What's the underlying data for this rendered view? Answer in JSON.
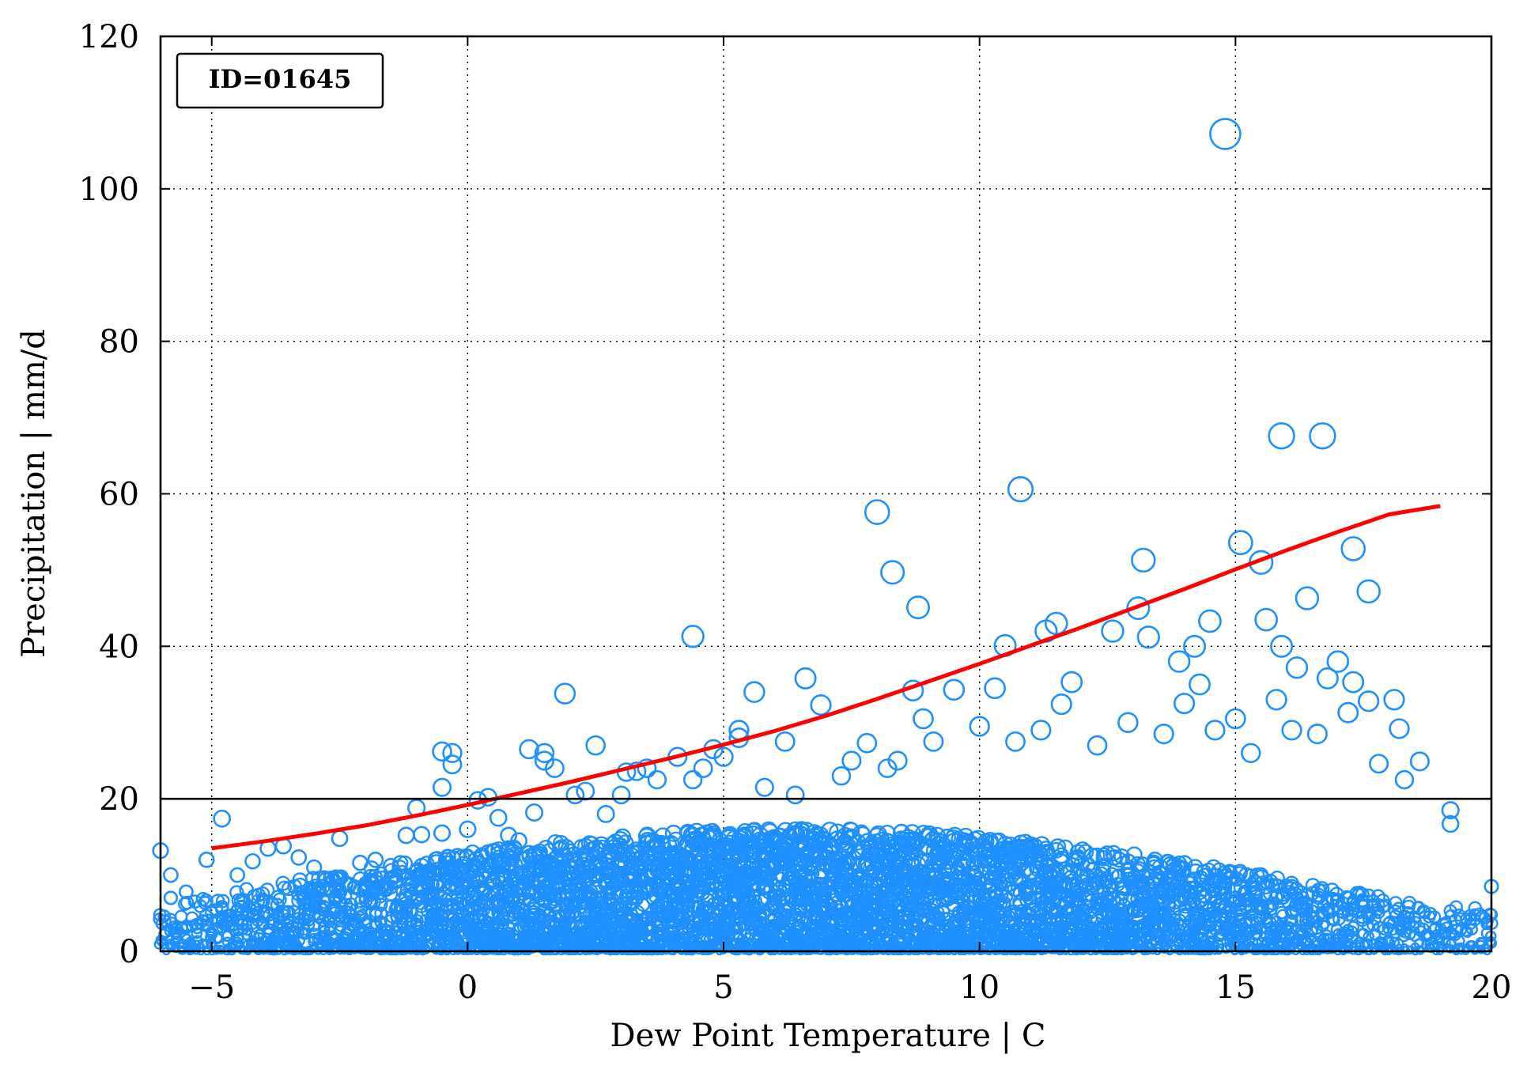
{
  "chart_data": {
    "type": "scatter",
    "title": "",
    "xlabel": "Dew Point Temperature | C",
    "ylabel": "Precipitation | mm/d",
    "xlim": [
      -6,
      20
    ],
    "ylim": [
      0,
      120
    ],
    "x_ticks": [
      -5,
      0,
      5,
      10,
      15,
      20
    ],
    "x_tick_labels": [
      "−5",
      "0",
      "5",
      "10",
      "15",
      "20"
    ],
    "y_ticks": [
      0,
      20,
      40,
      60,
      80,
      100,
      120
    ],
    "y_tick_labels": [
      "0",
      "20",
      "40",
      "60",
      "80",
      "100",
      "120"
    ],
    "grid": true,
    "annotation": "ID=01645",
    "reference_line_y": 20,
    "colors": {
      "points": "#1e90ff",
      "fit_line": "#ff0000",
      "reference_line": "#000000"
    },
    "series": [
      {
        "type": "scatter",
        "points": [
          [
            -6.0,
            13.2
          ],
          [
            -5.8,
            10.0
          ],
          [
            -5.8,
            7.0
          ],
          [
            -5.5,
            7.8
          ],
          [
            -5.1,
            12.0
          ],
          [
            -4.8,
            17.4
          ],
          [
            -4.5,
            10.0
          ],
          [
            -4.2,
            11.8
          ],
          [
            -3.9,
            13.5
          ],
          [
            -3.6,
            13.8
          ],
          [
            -3.3,
            12.3
          ],
          [
            -3.0,
            11.0
          ],
          [
            -2.5,
            14.8
          ],
          [
            -2.1,
            11.6
          ],
          [
            -1.8,
            12.0
          ],
          [
            -1.5,
            11.2
          ],
          [
            -1.2,
            15.2
          ],
          [
            -1.0,
            18.8
          ],
          [
            -0.9,
            15.3
          ],
          [
            -0.5,
            21.5
          ],
          [
            -0.5,
            26.2
          ],
          [
            -0.5,
            15.5
          ],
          [
            -0.3,
            26.0
          ],
          [
            -0.3,
            24.5
          ],
          [
            0.0,
            16.0
          ],
          [
            0.2,
            19.8
          ],
          [
            0.4,
            20.2
          ],
          [
            0.6,
            17.5
          ],
          [
            0.8,
            15.2
          ],
          [
            1.0,
            14.5
          ],
          [
            1.2,
            26.5
          ],
          [
            1.3,
            18.2
          ],
          [
            1.5,
            25.0
          ],
          [
            1.5,
            26.0
          ],
          [
            1.7,
            24.0
          ],
          [
            1.9,
            33.8
          ],
          [
            2.1,
            20.5
          ],
          [
            2.3,
            21.0
          ],
          [
            2.5,
            27.0
          ],
          [
            2.7,
            18.0
          ],
          [
            3.0,
            20.5
          ],
          [
            3.1,
            23.5
          ],
          [
            3.3,
            23.6
          ],
          [
            3.5,
            24.0
          ],
          [
            3.7,
            22.5
          ],
          [
            4.1,
            25.5
          ],
          [
            4.4,
            41.3
          ],
          [
            4.4,
            22.5
          ],
          [
            4.6,
            24.0
          ],
          [
            4.8,
            26.5
          ],
          [
            5.0,
            25.5
          ],
          [
            5.3,
            29.0
          ],
          [
            5.3,
            28.0
          ],
          [
            5.6,
            34.0
          ],
          [
            5.8,
            21.5
          ],
          [
            6.2,
            27.5
          ],
          [
            6.4,
            20.5
          ],
          [
            6.6,
            35.8
          ],
          [
            6.9,
            32.3
          ],
          [
            7.3,
            23.0
          ],
          [
            7.5,
            25.0
          ],
          [
            7.8,
            27.3
          ],
          [
            8.0,
            57.6
          ],
          [
            8.2,
            24.0
          ],
          [
            8.3,
            49.7
          ],
          [
            8.4,
            25.0
          ],
          [
            8.7,
            34.2
          ],
          [
            8.8,
            45.1
          ],
          [
            8.9,
            30.5
          ],
          [
            9.1,
            27.5
          ],
          [
            9.5,
            34.3
          ],
          [
            10.0,
            29.5
          ],
          [
            10.3,
            34.5
          ],
          [
            10.5,
            40.1
          ],
          [
            10.7,
            27.5
          ],
          [
            10.8,
            60.6
          ],
          [
            11.2,
            29.0
          ],
          [
            11.3,
            42.0
          ],
          [
            11.5,
            43.0
          ],
          [
            11.6,
            32.4
          ],
          [
            11.8,
            35.3
          ],
          [
            12.3,
            27.0
          ],
          [
            12.6,
            42.0
          ],
          [
            12.9,
            30.0
          ],
          [
            13.1,
            45.0
          ],
          [
            13.2,
            51.3
          ],
          [
            13.3,
            41.2
          ],
          [
            13.6,
            28.5
          ],
          [
            13.9,
            38.0
          ],
          [
            14.0,
            32.5
          ],
          [
            14.2,
            40.0
          ],
          [
            14.3,
            35.0
          ],
          [
            14.5,
            43.3
          ],
          [
            14.6,
            29.0
          ],
          [
            14.8,
            107.2
          ],
          [
            15.0,
            30.5
          ],
          [
            15.1,
            53.6
          ],
          [
            15.3,
            26.0
          ],
          [
            15.5,
            51.0
          ],
          [
            15.6,
            43.5
          ],
          [
            15.8,
            33.0
          ],
          [
            15.9,
            67.6
          ],
          [
            15.9,
            40.0
          ],
          [
            16.1,
            29.0
          ],
          [
            16.2,
            37.2
          ],
          [
            16.4,
            46.3
          ],
          [
            16.6,
            28.5
          ],
          [
            16.7,
            67.6
          ],
          [
            16.8,
            35.8
          ],
          [
            17.0,
            38.0
          ],
          [
            17.2,
            31.3
          ],
          [
            17.3,
            52.8
          ],
          [
            17.3,
            35.3
          ],
          [
            17.6,
            32.8
          ],
          [
            17.6,
            47.2
          ],
          [
            17.8,
            24.6
          ],
          [
            18.1,
            33.0
          ],
          [
            18.2,
            29.2
          ],
          [
            18.3,
            22.5
          ],
          [
            18.6,
            24.9
          ],
          [
            19.2,
            18.5
          ],
          [
            19.2,
            16.7
          ],
          [
            20.0,
            8.5
          ]
        ]
      },
      {
        "type": "line",
        "x": [
          -5,
          -4,
          -3,
          -2,
          -1,
          0,
          1,
          2,
          3,
          4,
          5,
          6,
          7,
          8,
          9,
          10,
          11,
          12,
          13,
          14,
          15,
          16,
          17,
          18,
          19
        ],
        "y": [
          13.5,
          14.4,
          15.4,
          16.5,
          17.8,
          19.2,
          20.7,
          22.2,
          23.8,
          25.4,
          27.1,
          28.9,
          30.9,
          33.1,
          35.4,
          37.7,
          40.1,
          42.5,
          45.0,
          47.5,
          50.1,
          52.6,
          55.0,
          57.3,
          58.4
        ]
      }
    ]
  }
}
